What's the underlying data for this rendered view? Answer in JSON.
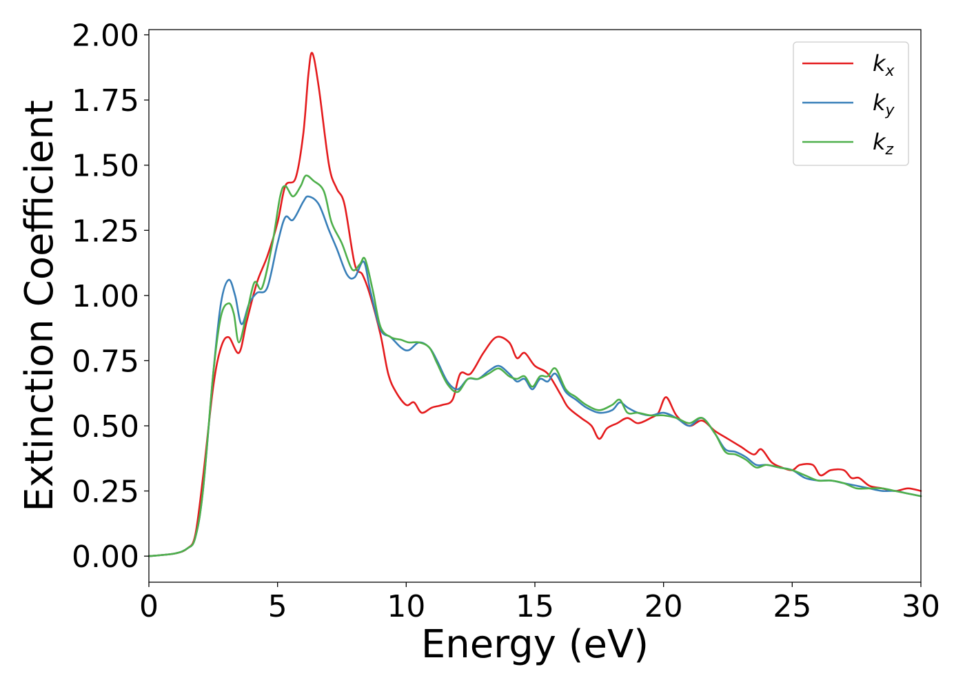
{
  "chart_data": {
    "type": "line",
    "xlabel": "Energy (eV)",
    "ylabel": "Extinction Coefficient",
    "xlim": [
      0,
      30
    ],
    "ylim": [
      -0.1,
      2.02
    ],
    "xticks": [
      0,
      5,
      10,
      15,
      20,
      25,
      30
    ],
    "xtick_labels": [
      "0",
      "5",
      "10",
      "15",
      "20",
      "25",
      "30"
    ],
    "yticks": [
      0,
      0.25,
      0.5,
      0.75,
      1.0,
      1.25,
      1.5,
      1.75,
      2.0
    ],
    "ytick_labels": [
      "0.00",
      "0.25",
      "0.50",
      "0.75",
      "1.00",
      "1.25",
      "1.50",
      "1.75",
      "2.00"
    ],
    "grid": false,
    "legend_position": "top-right",
    "series": [
      {
        "name": "kx",
        "base": "k",
        "sub": "x",
        "color": "#e41a1c",
        "points": [
          [
            0,
            0
          ],
          [
            1,
            0.01
          ],
          [
            1.5,
            0.03
          ],
          [
            1.8,
            0.08
          ],
          [
            2.1,
            0.3
          ],
          [
            2.5,
            0.65
          ],
          [
            2.8,
            0.8
          ],
          [
            3.1,
            0.84
          ],
          [
            3.5,
            0.78
          ],
          [
            3.8,
            0.9
          ],
          [
            4.2,
            1.05
          ],
          [
            4.6,
            1.15
          ],
          [
            5.0,
            1.28
          ],
          [
            5.3,
            1.42
          ],
          [
            5.7,
            1.45
          ],
          [
            6.0,
            1.62
          ],
          [
            6.2,
            1.85
          ],
          [
            6.35,
            1.93
          ],
          [
            6.6,
            1.8
          ],
          [
            7.0,
            1.5
          ],
          [
            7.3,
            1.41
          ],
          [
            7.6,
            1.35
          ],
          [
            8.0,
            1.12
          ],
          [
            8.3,
            1.08
          ],
          [
            8.6,
            1.0
          ],
          [
            9.0,
            0.85
          ],
          [
            9.3,
            0.7
          ],
          [
            9.6,
            0.63
          ],
          [
            10.0,
            0.58
          ],
          [
            10.3,
            0.59
          ],
          [
            10.6,
            0.55
          ],
          [
            11.0,
            0.57
          ],
          [
            11.4,
            0.58
          ],
          [
            11.8,
            0.6
          ],
          [
            12.1,
            0.7
          ],
          [
            12.5,
            0.7
          ],
          [
            13.0,
            0.78
          ],
          [
            13.5,
            0.84
          ],
          [
            14.0,
            0.82
          ],
          [
            14.3,
            0.76
          ],
          [
            14.6,
            0.78
          ],
          [
            15.0,
            0.73
          ],
          [
            15.5,
            0.7
          ],
          [
            16.0,
            0.62
          ],
          [
            16.3,
            0.57
          ],
          [
            16.8,
            0.53
          ],
          [
            17.2,
            0.5
          ],
          [
            17.5,
            0.45
          ],
          [
            17.8,
            0.49
          ],
          [
            18.2,
            0.51
          ],
          [
            18.6,
            0.53
          ],
          [
            19.0,
            0.51
          ],
          [
            19.5,
            0.53
          ],
          [
            19.8,
            0.55
          ],
          [
            20.1,
            0.61
          ],
          [
            20.5,
            0.54
          ],
          [
            21.0,
            0.5
          ],
          [
            21.5,
            0.52
          ],
          [
            22.0,
            0.48
          ],
          [
            22.5,
            0.45
          ],
          [
            23.0,
            0.42
          ],
          [
            23.5,
            0.39
          ],
          [
            23.8,
            0.41
          ],
          [
            24.2,
            0.36
          ],
          [
            24.6,
            0.34
          ],
          [
            25.0,
            0.33
          ],
          [
            25.3,
            0.35
          ],
          [
            25.8,
            0.35
          ],
          [
            26.1,
            0.31
          ],
          [
            26.5,
            0.33
          ],
          [
            27.0,
            0.33
          ],
          [
            27.3,
            0.3
          ],
          [
            27.6,
            0.3
          ],
          [
            28.0,
            0.27
          ],
          [
            28.5,
            0.26
          ],
          [
            29.0,
            0.25
          ],
          [
            29.5,
            0.26
          ],
          [
            30.0,
            0.25
          ]
        ]
      },
      {
        "name": "ky",
        "base": "k",
        "sub": "y",
        "color": "#377eb8",
        "points": [
          [
            0,
            0
          ],
          [
            1,
            0.01
          ],
          [
            1.5,
            0.03
          ],
          [
            1.8,
            0.07
          ],
          [
            2.1,
            0.25
          ],
          [
            2.5,
            0.7
          ],
          [
            2.8,
            0.97
          ],
          [
            3.1,
            1.06
          ],
          [
            3.35,
            1.0
          ],
          [
            3.6,
            0.89
          ],
          [
            3.9,
            0.97
          ],
          [
            4.2,
            1.01
          ],
          [
            4.6,
            1.03
          ],
          [
            5.0,
            1.2
          ],
          [
            5.3,
            1.3
          ],
          [
            5.6,
            1.29
          ],
          [
            6.0,
            1.36
          ],
          [
            6.2,
            1.38
          ],
          [
            6.6,
            1.35
          ],
          [
            7.0,
            1.25
          ],
          [
            7.3,
            1.18
          ],
          [
            7.7,
            1.08
          ],
          [
            8.0,
            1.07
          ],
          [
            8.35,
            1.13
          ],
          [
            8.6,
            1.02
          ],
          [
            9.0,
            0.87
          ],
          [
            9.4,
            0.84
          ],
          [
            9.8,
            0.8
          ],
          [
            10.1,
            0.79
          ],
          [
            10.5,
            0.82
          ],
          [
            10.9,
            0.8
          ],
          [
            11.2,
            0.75
          ],
          [
            11.6,
            0.67
          ],
          [
            12.0,
            0.64
          ],
          [
            12.4,
            0.68
          ],
          [
            12.8,
            0.68
          ],
          [
            13.2,
            0.71
          ],
          [
            13.6,
            0.73
          ],
          [
            14.0,
            0.7
          ],
          [
            14.3,
            0.67
          ],
          [
            14.6,
            0.68
          ],
          [
            14.9,
            0.64
          ],
          [
            15.2,
            0.68
          ],
          [
            15.5,
            0.67
          ],
          [
            15.8,
            0.7
          ],
          [
            16.2,
            0.63
          ],
          [
            16.6,
            0.6
          ],
          [
            17.0,
            0.57
          ],
          [
            17.5,
            0.55
          ],
          [
            18.0,
            0.56
          ],
          [
            18.3,
            0.59
          ],
          [
            18.6,
            0.57
          ],
          [
            19.0,
            0.55
          ],
          [
            19.5,
            0.54
          ],
          [
            20.0,
            0.55
          ],
          [
            20.5,
            0.53
          ],
          [
            21.0,
            0.5
          ],
          [
            21.5,
            0.53
          ],
          [
            22.0,
            0.47
          ],
          [
            22.4,
            0.41
          ],
          [
            22.8,
            0.4
          ],
          [
            23.2,
            0.38
          ],
          [
            23.6,
            0.35
          ],
          [
            24.0,
            0.35
          ],
          [
            24.5,
            0.34
          ],
          [
            25.0,
            0.33
          ],
          [
            25.5,
            0.3
          ],
          [
            26.0,
            0.29
          ],
          [
            26.5,
            0.29
          ],
          [
            27.0,
            0.28
          ],
          [
            27.5,
            0.27
          ],
          [
            28.0,
            0.26
          ],
          [
            28.5,
            0.25
          ],
          [
            29.0,
            0.25
          ],
          [
            29.5,
            0.24
          ],
          [
            30.0,
            0.23
          ]
        ]
      },
      {
        "name": "kz",
        "base": "k",
        "sub": "z",
        "color": "#4daf4a",
        "points": [
          [
            0,
            0
          ],
          [
            1,
            0.01
          ],
          [
            1.5,
            0.03
          ],
          [
            1.8,
            0.07
          ],
          [
            2.1,
            0.25
          ],
          [
            2.5,
            0.7
          ],
          [
            2.8,
            0.92
          ],
          [
            3.1,
            0.97
          ],
          [
            3.3,
            0.93
          ],
          [
            3.5,
            0.82
          ],
          [
            3.8,
            0.93
          ],
          [
            4.1,
            1.05
          ],
          [
            4.4,
            1.03
          ],
          [
            4.8,
            1.2
          ],
          [
            5.1,
            1.38
          ],
          [
            5.3,
            1.42
          ],
          [
            5.6,
            1.38
          ],
          [
            5.9,
            1.42
          ],
          [
            6.1,
            1.46
          ],
          [
            6.4,
            1.44
          ],
          [
            6.8,
            1.4
          ],
          [
            7.1,
            1.28
          ],
          [
            7.5,
            1.2
          ],
          [
            7.9,
            1.1
          ],
          [
            8.2,
            1.12
          ],
          [
            8.4,
            1.14
          ],
          [
            8.7,
            1.02
          ],
          [
            9.0,
            0.88
          ],
          [
            9.4,
            0.84
          ],
          [
            9.8,
            0.83
          ],
          [
            10.1,
            0.82
          ],
          [
            10.5,
            0.82
          ],
          [
            10.9,
            0.8
          ],
          [
            11.2,
            0.74
          ],
          [
            11.6,
            0.66
          ],
          [
            12.0,
            0.63
          ],
          [
            12.4,
            0.68
          ],
          [
            12.8,
            0.68
          ],
          [
            13.2,
            0.7
          ],
          [
            13.6,
            0.72
          ],
          [
            14.0,
            0.69
          ],
          [
            14.3,
            0.68
          ],
          [
            14.6,
            0.69
          ],
          [
            14.9,
            0.65
          ],
          [
            15.2,
            0.69
          ],
          [
            15.5,
            0.69
          ],
          [
            15.8,
            0.72
          ],
          [
            16.2,
            0.64
          ],
          [
            16.6,
            0.61
          ],
          [
            17.0,
            0.58
          ],
          [
            17.5,
            0.56
          ],
          [
            18.0,
            0.58
          ],
          [
            18.3,
            0.6
          ],
          [
            18.6,
            0.55
          ],
          [
            19.0,
            0.55
          ],
          [
            19.5,
            0.54
          ],
          [
            20.0,
            0.54
          ],
          [
            20.5,
            0.53
          ],
          [
            21.0,
            0.51
          ],
          [
            21.5,
            0.53
          ],
          [
            22.0,
            0.47
          ],
          [
            22.4,
            0.4
          ],
          [
            22.8,
            0.39
          ],
          [
            23.2,
            0.37
          ],
          [
            23.6,
            0.34
          ],
          [
            24.0,
            0.35
          ],
          [
            24.5,
            0.34
          ],
          [
            25.0,
            0.33
          ],
          [
            25.5,
            0.31
          ],
          [
            26.0,
            0.29
          ],
          [
            26.5,
            0.29
          ],
          [
            27.0,
            0.28
          ],
          [
            27.5,
            0.26
          ],
          [
            28.0,
            0.26
          ],
          [
            28.5,
            0.26
          ],
          [
            29.0,
            0.25
          ],
          [
            29.5,
            0.24
          ],
          [
            30.0,
            0.23
          ]
        ]
      }
    ]
  }
}
